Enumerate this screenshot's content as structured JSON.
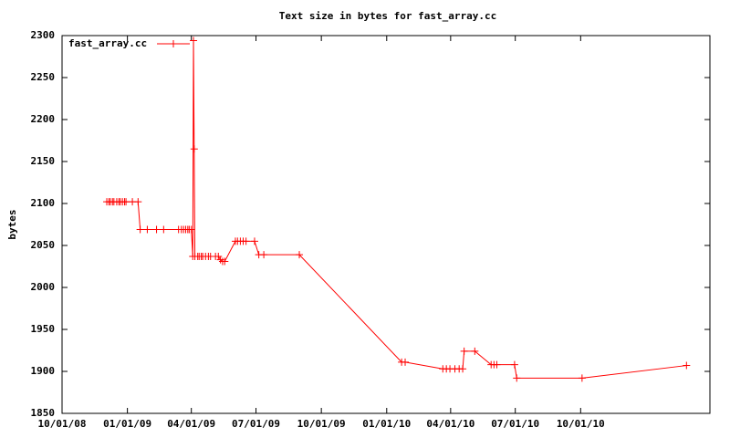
{
  "chart_data": {
    "type": "line",
    "title": "Text size in bytes for fast_array.cc",
    "ylabel": "bytes",
    "x": [
      "12/03/08",
      "12/06/08",
      "12/08/08",
      "12/11/08",
      "12/13/08",
      "12/17/08",
      "12/20/08",
      "12/22/08",
      "12/25/08",
      "12/28/08",
      "12/30/08",
      "01/08/09",
      "01/16/09",
      "01/19/09",
      "01/29/09",
      "02/11/09",
      "02/21/09",
      "03/14/09",
      "03/18/09",
      "03/21/09",
      "03/24/09",
      "03/27/09",
      "03/29/09",
      "04/01/09",
      "04/03/09",
      "04/04/09",
      "04/05/09",
      "04/06/09",
      "04/10/09",
      "04/12/09",
      "04/15/09",
      "04/17/09",
      "04/21/09",
      "04/25/09",
      "04/28/09",
      "05/05/09",
      "05/09/09",
      "05/12/09",
      "05/15/09",
      "05/18/09",
      "06/02/09",
      "06/05/09",
      "06/09/09",
      "06/13/09",
      "06/17/09",
      "06/29/09",
      "07/05/09",
      "07/12/09",
      "08/31/09",
      "01/22/10",
      "01/27/10",
      "03/21/10",
      "03/26/10",
      "03/31/10",
      "04/07/10",
      "04/13/10",
      "04/18/10",
      "04/20/10",
      "05/05/10",
      "05/28/10",
      "06/01/10",
      "06/05/10",
      "06/30/10",
      "07/03/10",
      "10/03/10",
      "02/27/11"
    ],
    "series": [
      {
        "name": "fast_array.cc",
        "color": "#ff0000",
        "values": [
          2102,
          2102,
          2102,
          2102,
          2102,
          2102,
          2102,
          2102,
          2102,
          2102,
          2102,
          2102,
          2102,
          2069,
          2069,
          2069,
          2069,
          2069,
          2069,
          2069,
          2069,
          2069,
          2069,
          2069,
          2037,
          2294,
          2165,
          2037,
          2037,
          2037,
          2037,
          2037,
          2037,
          2037,
          2037,
          2037,
          2037,
          2033,
          2031,
          2031,
          2055,
          2055,
          2055,
          2055,
          2055,
          2055,
          2039,
          2039,
          2039,
          1911,
          1911,
          1903,
          1903,
          1903,
          1903,
          1903,
          1903,
          1924,
          1924,
          1908,
          1908,
          1908,
          1908,
          1892,
          1892,
          1907
        ]
      }
    ],
    "xlim": [
      "10/01/08",
      "04/01/11"
    ],
    "xticks": [
      "10/01/08",
      "01/01/09",
      "04/01/09",
      "07/01/09",
      "10/01/09",
      "01/01/10",
      "04/01/10",
      "07/01/10",
      "10/01/10"
    ],
    "ylim": [
      1850,
      2300
    ],
    "yticks": [
      1850,
      1900,
      1950,
      2000,
      2050,
      2100,
      2150,
      2200,
      2250,
      2300
    ],
    "legend": "top-left"
  }
}
